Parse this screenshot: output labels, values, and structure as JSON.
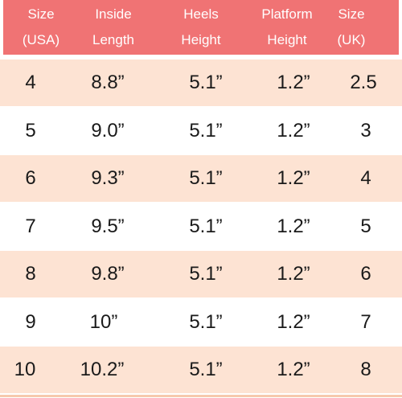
{
  "table": {
    "headers": [
      {
        "line1": "Size",
        "line2": "(USA)"
      },
      {
        "line1": "Inside",
        "line2": "Length"
      },
      {
        "line1": "Heels",
        "line2": "Height"
      },
      {
        "line1": "Platform",
        "line2": "Height"
      },
      {
        "line1": "Size",
        "line2": "(UK)"
      }
    ],
    "rows": [
      [
        "4",
        "8.8”",
        "5.1”",
        "1.2”",
        "2.5"
      ],
      [
        "5",
        "9.0”",
        "5.1”",
        "1.2”",
        "3"
      ],
      [
        "6",
        "9.3”",
        "5.1”",
        "1.2”",
        "4"
      ],
      [
        "7",
        "9.5”",
        "5.1”",
        "1.2”",
        "5"
      ],
      [
        "8",
        "9.8”",
        "5.1”",
        "1.2”",
        "6"
      ],
      [
        "9",
        "10”",
        "5.1”",
        "1.2”",
        "7"
      ],
      [
        "10",
        "10.2”",
        "5.1”",
        "1.2”",
        "8"
      ]
    ]
  },
  "colors": {
    "header_bg": "#f07374",
    "header_text": "#ffffff",
    "row_shaded": "#fde3d3",
    "row_plain": "#ffffff",
    "cell_text": "#1a1a1a"
  }
}
